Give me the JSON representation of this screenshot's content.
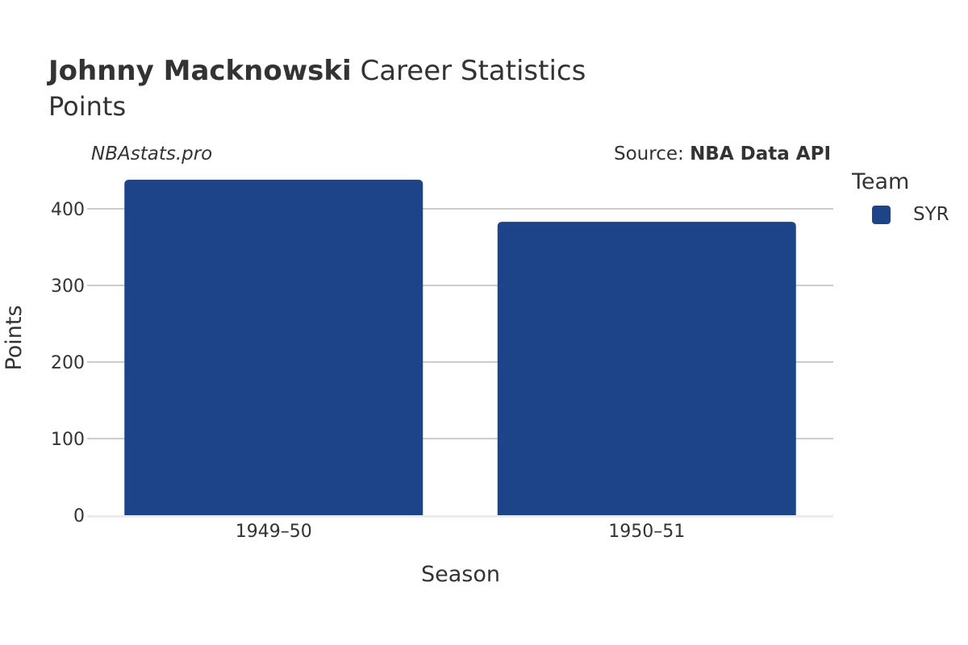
{
  "header": {
    "title_bold": "Johnny Macknowski",
    "title_rest": "Career Statistics",
    "subtitle": "Points",
    "brand": "NBAstats.pro",
    "source_prefix": "Source:",
    "source_name": "NBA Data API"
  },
  "chart_data": {
    "type": "bar",
    "categories": [
      "1949–50",
      "1950–51"
    ],
    "series": [
      {
        "name": "SYR",
        "values": [
          438,
          383
        ],
        "color": "#1d4388"
      }
    ],
    "xlabel": "Season",
    "ylabel": "Points",
    "ylim": [
      0,
      440
    ],
    "yticks": [
      0,
      100,
      200,
      300,
      400
    ],
    "grid": true,
    "legend": {
      "title": "Team",
      "position": "right"
    }
  }
}
